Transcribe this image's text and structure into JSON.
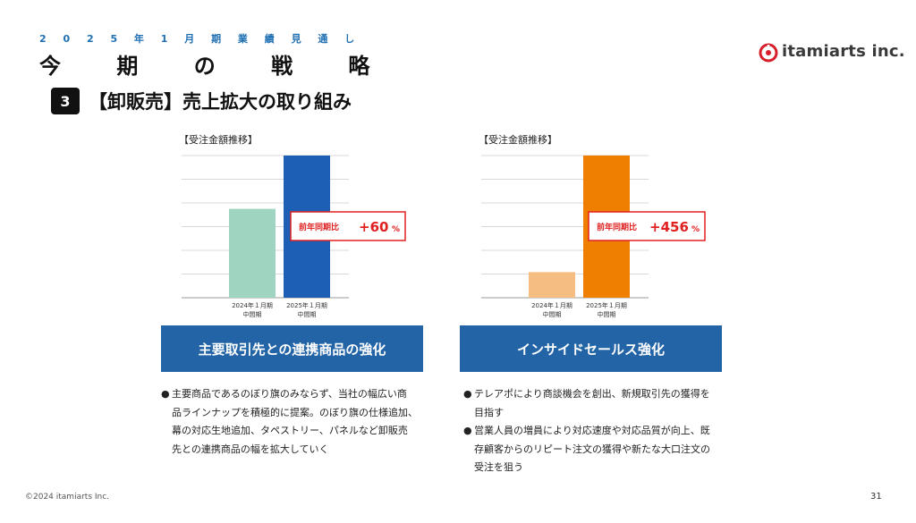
{
  "header": {
    "kicker": "2 0 2 5 年 1 月 期 業 績 見 通 し",
    "title": "今 期 の 戦 略",
    "logo_text": "itamiarts inc."
  },
  "section": {
    "number": "3",
    "title": "【卸販売】売上拡大の取り組み"
  },
  "colors": {
    "accent_blue": "#2264a6",
    "left_prev": "#9fd4c0",
    "left_curr": "#1d5fb4",
    "right_prev": "#f5bd82",
    "right_curr": "#ee7f00",
    "callout_red": "#e02020"
  },
  "chart_data": [
    {
      "type": "bar",
      "title": "【受注金額推移】",
      "categories": [
        [
          "2024年１月期",
          "中間期"
        ],
        [
          "2025年１月期",
          "中間期"
        ]
      ],
      "values": [
        6.25,
        10
      ],
      "ylim": [
        0,
        10.5
      ],
      "grid": true,
      "callout": {
        "label": "前年同期比",
        "value": "+60",
        "unit": "%"
      }
    },
    {
      "type": "bar",
      "title": "【受注金額推移】",
      "categories": [
        [
          "2024年１月期",
          "中間期"
        ],
        [
          "2025年１月期",
          "中間期"
        ]
      ],
      "values": [
        1.8,
        10
      ],
      "ylim": [
        0,
        10.5
      ],
      "grid": true,
      "callout": {
        "label": "前年同期比",
        "value": "+456",
        "unit": "%"
      }
    }
  ],
  "left": {
    "panel": "主要取引先との連携商品の強化",
    "bullets": [
      {
        "lines": [
          "主要商品であるのぼり旗のみならず、当社の幅広い商",
          "品ラインナップを積極的に提案。のぼり旗の仕様追加、",
          "幕の対応生地追加、タペストリー、パネルなど卸販売",
          "先との連携商品の幅を拡大していく"
        ]
      }
    ]
  },
  "right": {
    "panel": "インサイドセールス強化",
    "bullets": [
      {
        "lines": [
          "テレアポにより商談機会を創出、新規取引先の獲得を",
          "目指す"
        ]
      },
      {
        "lines": [
          "営業人員の増員により対応速度や対応品質が向上、既",
          "存顧客からのリピート注文の獲得や新たな大口注文の",
          "受注を狙う"
        ]
      }
    ]
  },
  "bullet_char": "●",
  "footer": {
    "copyright": "©2024 itamiarts Inc.",
    "page": "31"
  }
}
